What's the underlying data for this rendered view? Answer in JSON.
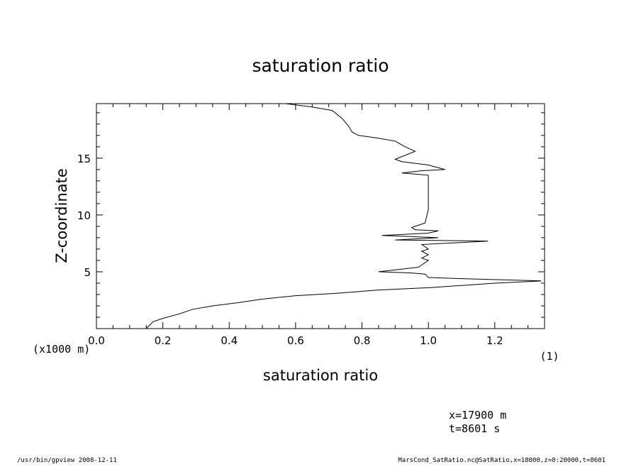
{
  "chart_data": {
    "type": "line",
    "title": "saturation ratio",
    "xlabel": "saturation ratio",
    "ylabel": "Z-coordinate",
    "x_unit_note": "(1)",
    "y_unit_note": "(x1000 m)",
    "xlim": [
      0.0,
      1.35
    ],
    "ylim": [
      0.0,
      19.8
    ],
    "x_ticks": [
      "0.0",
      "0.2",
      "0.4",
      "0.6",
      "0.8",
      "1.0",
      "1.2"
    ],
    "y_ticks": [
      "5",
      "10",
      "15"
    ],
    "series": [
      {
        "points": [
          [
            0.15,
            0.0
          ],
          [
            0.17,
            0.6
          ],
          [
            0.2,
            0.9
          ],
          [
            0.25,
            1.3
          ],
          [
            0.29,
            1.7
          ],
          [
            0.35,
            2.0
          ],
          [
            0.43,
            2.3
          ],
          [
            0.5,
            2.6
          ],
          [
            0.6,
            2.9
          ],
          [
            0.72,
            3.1
          ],
          [
            0.85,
            3.4
          ],
          [
            1.0,
            3.6
          ],
          [
            1.1,
            3.8
          ],
          [
            1.2,
            4.0
          ],
          [
            1.34,
            4.2
          ],
          [
            1.1,
            4.4
          ],
          [
            1.0,
            4.5
          ],
          [
            0.99,
            4.8
          ],
          [
            0.95,
            4.9
          ],
          [
            0.85,
            5.0
          ],
          [
            0.97,
            5.4
          ],
          [
            1.0,
            6.0
          ],
          [
            0.98,
            6.2
          ],
          [
            1.0,
            6.5
          ],
          [
            0.98,
            6.8
          ],
          [
            1.0,
            7.0
          ],
          [
            0.98,
            7.4
          ],
          [
            1.18,
            7.7
          ],
          [
            0.9,
            7.8
          ],
          [
            1.03,
            8.0
          ],
          [
            0.86,
            8.2
          ],
          [
            1.0,
            8.4
          ],
          [
            1.03,
            8.6
          ],
          [
            0.96,
            8.7
          ],
          [
            0.95,
            8.9
          ],
          [
            0.99,
            9.3
          ],
          [
            1.0,
            10.5
          ],
          [
            1.0,
            12.0
          ],
          [
            1.0,
            13.0
          ],
          [
            1.0,
            13.5
          ],
          [
            0.96,
            13.6
          ],
          [
            0.92,
            13.7
          ],
          [
            0.98,
            13.9
          ],
          [
            1.05,
            14.0
          ],
          [
            1.0,
            14.4
          ],
          [
            0.92,
            14.7
          ],
          [
            0.9,
            14.9
          ],
          [
            0.96,
            15.6
          ],
          [
            0.93,
            16.0
          ],
          [
            0.9,
            16.5
          ],
          [
            0.84,
            16.8
          ],
          [
            0.79,
            17.0
          ],
          [
            0.77,
            17.3
          ],
          [
            0.76,
            17.8
          ],
          [
            0.74,
            18.5
          ],
          [
            0.71,
            19.2
          ],
          [
            0.65,
            19.5
          ],
          [
            0.57,
            19.8
          ]
        ]
      }
    ],
    "grid": false
  },
  "annotations": {
    "coords_line1": "x=17900  m",
    "coords_line2": "t=8601  s"
  },
  "footer": {
    "left": "/usr/bin/gpview   2008-12-11",
    "right": "MarsCond_SatRatio.nc@SatRatio,x=18000,z=0:20000,t=8601"
  }
}
